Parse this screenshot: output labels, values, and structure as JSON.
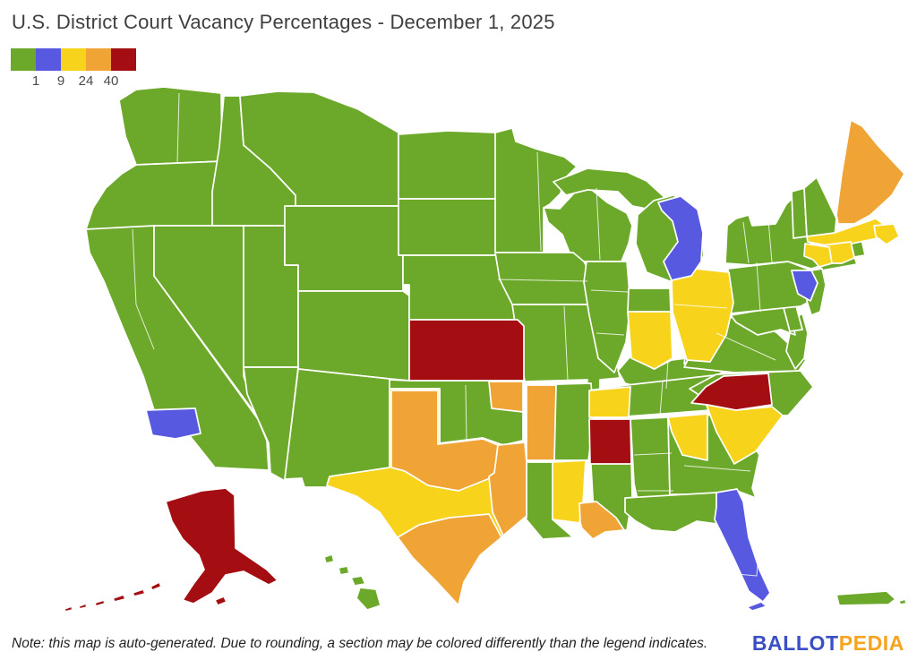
{
  "title": "U.S. District Court Vacancy Percentages - December 1, 2025",
  "note": "Note: this map is auto-generated. Due to rounding, a section may be colored differently than the legend indicates.",
  "brand": {
    "ballot": "BALLOT",
    "pedia": "PEDIA",
    "ballot_color": "#3A4FC4",
    "pedia_color": "#F6A41F"
  },
  "legend": {
    "swatches": [
      {
        "name": "green",
        "color": "#6CA829"
      },
      {
        "name": "blue",
        "color": "#575AE0"
      },
      {
        "name": "yellow",
        "color": "#F8D31C"
      },
      {
        "name": "orange",
        "color": "#F0A436"
      },
      {
        "name": "red",
        "color": "#A40D12"
      }
    ],
    "labels": [
      "1",
      "9",
      "24",
      "40"
    ]
  },
  "chart_data": {
    "type": "choropleth",
    "title": "U.S. District Court Vacancy Percentages - December 1, 2025",
    "scale_breakpoints": [
      1,
      9,
      24,
      40
    ],
    "scale_colors": [
      "#6CA829",
      "#575AE0",
      "#F8D31C",
      "#F0A436",
      "#A40D12"
    ],
    "legend_position": "top-left"
  },
  "map": {
    "palette": {
      "green": "#6CA829",
      "blue": "#575AE0",
      "yellow": "#F8D31C",
      "orange": "#F0A436",
      "red": "#A40D12"
    },
    "regions": [
      {
        "name": "washington",
        "color": "green",
        "polys": [
          "133,112 152,100 183,97 247,104 248,180 152,184 140,152"
        ]
      },
      {
        "name": "oregon",
        "color": "green",
        "polys": [
          "152,184 248,180 245,254 96,256 104,232 118,210 136,194"
        ]
      },
      {
        "name": "california",
        "color": "green",
        "polys": [
          "96,256 172,252 172,308 288,468 298,492 300,525 240,522 205,478 172,458 160,420 138,368 116,314 100,282"
        ]
      },
      {
        "name": "idaho",
        "color": "green",
        "polys": [
          "250,107 268,107 272,162 302,188 330,218 330,252 237,252 237,214 245,164"
        ]
      },
      {
        "name": "montana",
        "color": "green",
        "polys": [
          "268,107 310,102 350,103 400,122 445,148 445,230 330,230 330,218 302,188 272,162"
        ]
      },
      {
        "name": "nevada",
        "color": "green",
        "polys": [
          "172,252 272,252 272,420 288,466 172,308"
        ]
      },
      {
        "name": "utah",
        "color": "green",
        "polys": [
          "272,252 318,252 318,296 333,296 333,410 272,410"
        ]
      },
      {
        "name": "wyoming",
        "color": "green",
        "polys": [
          "318,230 450,230 450,325 333,325 333,296 318,296"
        ]
      },
      {
        "name": "colorado",
        "color": "green",
        "polys": [
          "333,325 450,325 457,330 457,425 435,423 333,412"
        ]
      },
      {
        "name": "arizona",
        "color": "green",
        "polys": [
          "272,410 333,410 318,537 302,528 300,495 288,468 276,440"
        ]
      },
      {
        "name": "new-mexico",
        "color": "green",
        "polys": [
          "333,412 435,423 435,533 368,533 368,544 340,544 337,534 318,535"
        ]
      },
      {
        "name": "north-dakota",
        "color": "green",
        "polys": [
          "445,150 500,146 553,148 556,222 445,222"
        ]
      },
      {
        "name": "south-dakota",
        "color": "green",
        "polys": [
          "445,222 556,222 562,242 558,285 445,285"
        ]
      },
      {
        "name": "nebraska",
        "color": "green",
        "polys": [
          "450,285 558,285 580,300 598,326 596,357 457,357 457,318 450,318"
        ]
      },
      {
        "name": "minnesota",
        "color": "green",
        "polys": [
          "553,148 572,143 576,158 598,166 630,175 644,186 630,200 626,216 614,228 607,232 607,282 553,282"
        ]
      },
      {
        "name": "wisconsin",
        "color": "green",
        "polys": [
          "607,232 625,233 650,206 662,213 678,226 700,238 706,252 702,272 694,292 640,292 628,262 612,248"
        ]
      },
      {
        "name": "michigan-upper-peninsula",
        "color": "green",
        "polys": [
          "618,203 656,188 700,192 722,202 744,222 737,236 706,230 690,214 656,212 632,218"
        ]
      },
      {
        "name": "michigan-lower-peninsula",
        "color": "green",
        "polys": [
          "712,240 730,224 752,218 775,230 784,255 786,285 776,308 748,314 722,304 710,272"
        ]
      },
      {
        "name": "iowa",
        "color": "green",
        "polys": [
          "553,282 640,282 652,292 664,315 658,340 572,340 558,312"
        ]
      },
      {
        "name": "missouri",
        "color": "green",
        "polys": [
          "572,340 658,340 670,365 688,400 692,422 670,424 670,442 654,442 656,424 586,426 578,380"
        ]
      },
      {
        "name": "illinois",
        "color": "green",
        "polys": [
          "655,292 700,292 704,340 699,382 686,416 668,400 658,352 652,315"
        ]
      },
      {
        "name": "indiana",
        "color": "green",
        "polys": [
          "702,322 748,322 751,400 731,412 705,400 701,348"
        ]
      },
      {
        "name": "kentucky",
        "color": "green",
        "polys": [
          "690,414 704,398 730,412 750,402 800,396 806,416 774,434 726,436 698,428"
        ]
      },
      {
        "name": "tennessee",
        "color": "green",
        "polys": [
          "658,436 700,430 806,418 810,434 794,458 686,466 658,466"
        ]
      },
      {
        "name": "west-virginia",
        "color": "green",
        "polys": [
          "764,406 770,362 786,340 802,324 813,322 815,352 799,358 786,370 777,398"
        ]
      },
      {
        "name": "virginia",
        "color": "green",
        "polys": [
          "764,410 784,370 804,356 838,352 868,372 900,402 892,414 820,416"
        ]
      },
      {
        "name": "delmarva-peninsula",
        "color": "green",
        "polys": [
          "880,360 896,350 902,372 898,400 888,412 878,392 882,372"
        ]
      },
      {
        "name": "maryland",
        "color": "green",
        "polys": [
          "816,352 874,342 884,358 888,374 872,368 846,374 822,360"
        ]
      },
      {
        "name": "delaware",
        "color": "green",
        "polys": [
          "874,340 888,338 896,368 882,370"
        ]
      },
      {
        "name": "pennsylvania",
        "color": "green",
        "polys": [
          "813,300 880,292 906,302 913,316 905,336 894,342 816,350"
        ]
      },
      {
        "name": "new-york",
        "color": "green",
        "polys": [
          "810,294 812,252 822,244 836,240 840,252 866,250 878,228 892,214 900,210 902,264 912,288 915,297 906,300 880,292 838,296"
        ]
      },
      {
        "name": "long-island",
        "color": "green",
        "polys": [
          "914,294 954,287 957,295 918,302"
        ]
      },
      {
        "name": "new-jersey",
        "color": "green",
        "polys": [
          "906,302 918,300 922,318 916,348 906,352 901,336 905,320"
        ]
      },
      {
        "name": "vermont",
        "color": "green",
        "polys": [
          "884,214 898,210 901,264 886,266"
        ]
      },
      {
        "name": "new-hampshire",
        "color": "green",
        "polys": [
          "898,210 912,198 934,244 932,264 901,264"
        ]
      },
      {
        "name": "rhode-island",
        "color": "green",
        "polys": [
          "950,270 962,267 966,285 954,287"
        ]
      },
      {
        "name": "north-carolina",
        "color": "green",
        "polys": [
          "770,434 800,418 894,414 908,432 880,464 838,464 800,454"
        ]
      },
      {
        "name": "alabama",
        "color": "green",
        "polys": [
          "704,468 746,466 748,552 752,572 716,576 708,540"
        ]
      },
      {
        "name": "mississippi",
        "color": "green",
        "polys": [
          "658,468 704,468 706,556 700,592 664,590 660,520"
        ]
      },
      {
        "name": "georgia",
        "color": "green",
        "polys": [
          "746,466 820,462 848,508 840,545 844,556 823,548 800,552 748,552"
        ]
      },
      {
        "name": "florida-northern",
        "color": "green",
        "polys": [
          "698,556 800,550 800,585 778,582 754,594 728,592 710,582 698,572"
        ]
      },
      {
        "name": "arkansas",
        "color": "green",
        "polys": [
          "588,430 660,428 663,470 657,514 588,514"
        ]
      },
      {
        "name": "oklahoma",
        "color": "green",
        "polys": [
          "435,424 457,425 584,425 584,492 562,497 539,489 491,495 491,434 435,434"
        ]
      },
      {
        "name": "louisiana-western",
        "color": "green",
        "polys": [
          "588,516 619,516 617,580 640,600 606,602 586,578"
        ]
      },
      {
        "name": "hawaii",
        "color": "green",
        "polys": [
          "362,622 371,619 373,627 364,629",
          "378,634 388,632 390,640 380,642",
          "392,645 404,643 408,652 396,654",
          "402,656 420,658 425,676 410,681 398,668"
        ]
      },
      {
        "name": "puerto-rico",
        "color": "green",
        "polys": [
          "934,664 990,660 1000,669 992,675 937,676",
          "1004,671 1011,669 1012,674 1005,675"
        ]
      },
      {
        "name": "texas-western",
        "color": "yellow",
        "polys": [
          "435,434 491,434 491,495 539,489 562,497 586,493 588,516 588,578 560,600 536,620 518,650 512,678 486,650 460,624 442,598 424,572 398,554 365,542 368,532 435,522"
        ]
      },
      {
        "name": "massachusetts",
        "color": "yellow",
        "polys": [
          "901,264 932,260 978,244 994,256 980,266 932,276 902,270",
          "976,252 998,250 1004,264 990,273 978,264"
        ]
      },
      {
        "name": "connecticut",
        "color": "yellow",
        "polys": [
          "918,274 950,270 954,288 940,294 924,294"
        ]
      },
      {
        "name": "ohio",
        "color": "yellow",
        "polys": [
          "750,310 777,300 814,304 819,338 811,374 793,404 767,402 751,348"
        ]
      },
      {
        "name": "indiana-southern",
        "color": "yellow",
        "polys": [
          "701,348 749,348 751,400 731,412 705,400"
        ]
      },
      {
        "name": "new-york-southern",
        "color": "yellow",
        "polys": [
          "899,272 926,276 929,294 915,298 908,290 898,286"
        ]
      },
      {
        "name": "south-carolina",
        "color": "yellow",
        "polys": [
          "788,450 822,458 862,454 874,464 844,504 820,518 800,482"
        ]
      },
      {
        "name": "georgia-northern",
        "color": "yellow",
        "polys": [
          "746,466 790,462 790,514 762,508 750,482"
        ]
      },
      {
        "name": "tennessee-western",
        "color": "yellow",
        "polys": [
          "658,436 704,432 702,466 658,466"
        ]
      },
      {
        "name": "louisiana-middle",
        "color": "yellow",
        "polys": [
          "617,516 654,514 651,562 647,584 617,580"
        ]
      },
      {
        "name": "maine",
        "color": "orange",
        "polys": [
          "934,240 940,194 950,134 963,141 980,162 1010,194 996,218 972,240 954,250 936,250"
        ]
      },
      {
        "name": "texas-northern",
        "color": "orange",
        "polys": [
          "437,436 489,436 489,496 539,490 556,497 552,532 512,548 478,542 452,526 437,522"
        ]
      },
      {
        "name": "texas-eastern",
        "color": "orange",
        "polys": [
          "556,497 586,494 588,516 588,576 562,598 550,572 546,532 552,528"
        ]
      },
      {
        "name": "texas-southern",
        "color": "orange",
        "polys": [
          "468,586 502,578 546,574 560,600 536,620 518,650 512,676 487,649 461,623 444,600"
        ]
      },
      {
        "name": "oklahoma-northeastern",
        "color": "orange",
        "polys": [
          "546,426 584,426 584,460 549,456"
        ]
      },
      {
        "name": "arkansas-western",
        "color": "orange",
        "polys": [
          "588,430 621,430 619,514 588,514"
        ]
      },
      {
        "name": "louisiana-eastern",
        "color": "orange",
        "polys": [
          "647,562 666,560 688,578 697,592 676,594 662,602 650,590 648,584"
        ]
      },
      {
        "name": "california-central",
        "color": "blue",
        "polys": [
          "163,458 218,456 224,484 196,490 170,486"
        ]
      },
      {
        "name": "michigan-eastern",
        "color": "blue",
        "polys": [
          "735,226 760,219 779,234 785,260 783,292 772,308 750,313 741,292 757,270 751,247 739,235"
        ]
      },
      {
        "name": "pennsylvania-eastern",
        "color": "blue",
        "polys": [
          "884,302 906,302 913,316 905,336 891,328 887,314"
        ]
      },
      {
        "name": "florida-middle-southern",
        "color": "blue",
        "polys": [
          "800,550 823,546 830,560 836,600 848,636 860,662 852,672 836,660 820,625 804,592 798,580 800,566",
          "834,678 850,672 856,677 840,682"
        ]
      },
      {
        "name": "kansas",
        "color": "red",
        "polys": [
          "457,357 578,357 585,364 585,425 457,425"
        ]
      },
      {
        "name": "alaska",
        "color": "red",
        "polys": [
          "185,560 225,548 252,545 262,553 263,612 298,636 310,648 300,653 272,638 252,642 237,662 216,674 204,670 216,652 228,636 222,620 204,602 192,582",
          "240,670 250,666 253,672 243,676",
          "168,655 178,650 180,655 170,659",
          "148,662 160,658 162,663 150,666",
          "126,668 138,664 140,669 128,672",
          "106,673 116,670 117,674 107,677",
          "88,677 96,674 97,678 89,680",
          "72,680 80,677 81,681 73,683"
        ]
      },
      {
        "name": "mississippi-northern",
        "color": "red",
        "polys": [
          "658,468 704,468 705,518 659,518"
        ]
      },
      {
        "name": "north-carolina-western",
        "color": "red",
        "polys": [
          "772,450 788,432 808,420 858,417 862,452 822,458 790,452"
        ]
      }
    ],
    "inner_borders": [
      "200,104 198,182",
      "148,256 152,340 172,390",
      "830,248 836,294",
      "858,246 862,293",
      "845,293 849,348",
      "800,372 866,402",
      "764,520 838,526",
      "708,508 750,506",
      "712,548 752,548",
      "740,426 737,464",
      "746,402 744,434",
      "753,340 812,344",
      "660,324 701,326",
      "666,372 697,374",
      "630,342 634,424",
      "666,210 670,290",
      "556,312 656,314",
      "600,170 604,280",
      "520,430 521,492",
      "823,641 845,643 847,616"
    ]
  }
}
